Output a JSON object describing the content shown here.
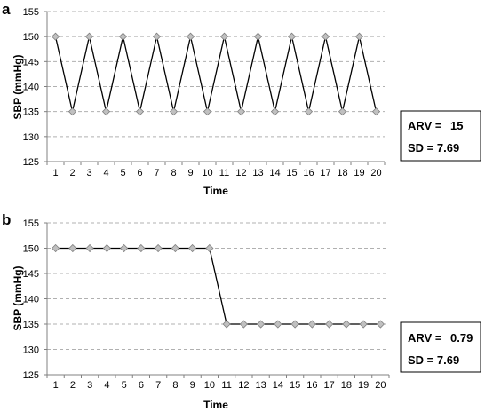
{
  "chart_data": [
    {
      "type": "line",
      "panel_label": "a",
      "xlabel": "Time",
      "ylabel": "SBP (mmHg)",
      "ylim": [
        125,
        155
      ],
      "yticks": [
        125,
        130,
        135,
        140,
        145,
        150,
        155
      ],
      "x": [
        1,
        2,
        3,
        4,
        5,
        6,
        7,
        8,
        9,
        10,
        11,
        12,
        13,
        14,
        15,
        16,
        17,
        18,
        19,
        20
      ],
      "values": [
        150,
        135,
        150,
        135,
        150,
        135,
        150,
        135,
        150,
        135,
        150,
        135,
        150,
        135,
        150,
        135,
        150,
        135,
        150,
        135
      ],
      "grid": true,
      "marker": "diamond",
      "legend_box": {
        "arv_label": "ARV = ",
        "arv_value": "15",
        "sd_label": "SD = ",
        "sd_value": "7.69"
      }
    },
    {
      "type": "line",
      "panel_label": "b",
      "xlabel": "Time",
      "ylabel": "SBP (mmHg)",
      "ylim": [
        125,
        155
      ],
      "yticks": [
        125,
        130,
        135,
        140,
        145,
        150,
        155
      ],
      "x": [
        1,
        2,
        3,
        4,
        5,
        6,
        7,
        8,
        9,
        10,
        11,
        12,
        13,
        14,
        15,
        16,
        17,
        18,
        19,
        20
      ],
      "values": [
        150,
        150,
        150,
        150,
        150,
        150,
        150,
        150,
        150,
        150,
        135,
        135,
        135,
        135,
        135,
        135,
        135,
        135,
        135,
        135
      ],
      "grid": true,
      "marker": "diamond",
      "legend_box": {
        "arv_label": "ARV = ",
        "arv_value": "0.79",
        "sd_label": "SD = ",
        "sd_value": "7.69"
      }
    }
  ],
  "colors": {
    "line": "#000000",
    "marker_fill": "#c0c0c0",
    "marker_stroke": "#808080",
    "grid": "#b0b0b0",
    "axis": "#808080"
  }
}
